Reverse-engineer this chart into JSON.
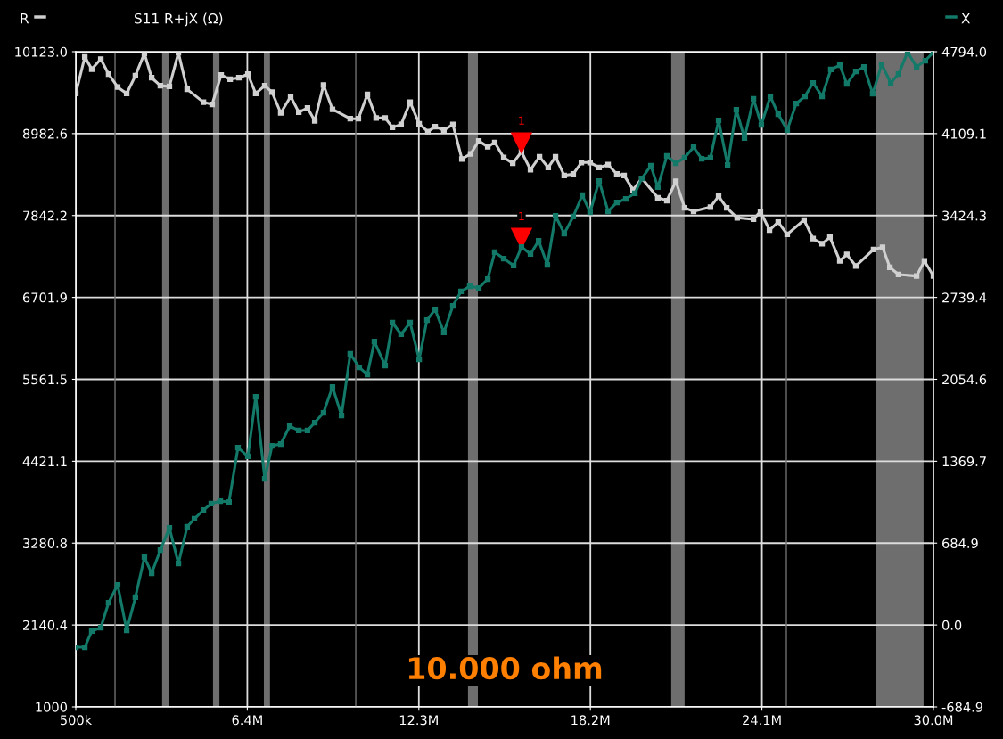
{
  "chart_data": {
    "type": "line",
    "title": "S11 R+jX (Ω)",
    "xlim": [
      500000,
      30000000
    ],
    "xticks": [
      {
        "value": 500000,
        "label": "500k"
      },
      {
        "value": 6400000,
        "label": "6.4M"
      },
      {
        "value": 12300000,
        "label": "12.3M"
      },
      {
        "value": 18200000,
        "label": "18.2M"
      },
      {
        "value": 24100000,
        "label": "24.1M"
      },
      {
        "value": 30000000,
        "label": "30.0M"
      }
    ],
    "ylim": [
      1000,
      10123.0
    ],
    "yticks": [
      1000,
      2140.4,
      3280.8,
      4421.1,
      5561.5,
      6701.9,
      7842.2,
      8982.6,
      {
        "value": 10123,
        "label": "10123.0"
      }
    ],
    "y2lim": [
      -684.9,
      4794.0
    ],
    "y2ticks": [
      -684.9,
      {
        "value": 0,
        "label": "0.0"
      },
      684.9,
      1369.7,
      2054.6,
      2739.4,
      3424.3,
      4109.1,
      {
        "value": 4794,
        "label": "4794.0"
      }
    ],
    "grid": true,
    "legend": "top",
    "marker": "square",
    "line_style": "solid",
    "series": [
      {
        "name": "R",
        "color": "#d0d0d0",
        "x": [
          500000,
          810000,
          1050000,
          1360000,
          1630000,
          1940000,
          2250000,
          2550000,
          2860000,
          3110000,
          3410000,
          3720000,
          4030000,
          4330000,
          4890000,
          5190000,
          5500000,
          5810000,
          6110000,
          6420000,
          6690000,
          7000000,
          7250000,
          7550000,
          7890000,
          8170000,
          8470000,
          8720000,
          9020000,
          9330000,
          9940000,
          10220000,
          10530000,
          10830000,
          11140000,
          11390000,
          11690000,
          12000000,
          12310000,
          12610000,
          12860000,
          13160000,
          13470000,
          13780000,
          14080000,
          14360000,
          14670000,
          14910000,
          15220000,
          15530000,
          15830000,
          16140000,
          16450000,
          16750000,
          17000000,
          17300000,
          17610000,
          17890000,
          18190000,
          18500000,
          18810000,
          19110000,
          19360000,
          19670000,
          19970000,
          20520000,
          20830000,
          21140000,
          21440000,
          21750000,
          22330000,
          22610000,
          22890000,
          23250000,
          23810000,
          24050000,
          24360000,
          24660000,
          24970000,
          25550000,
          25860000,
          26170000,
          26440000,
          26780000,
          27020000,
          27330000,
          27940000,
          28250000,
          28500000,
          28800000,
          29420000,
          29690000,
          30000000
        ],
        "values": [
          9540,
          10050,
          9880,
          10020,
          9810,
          9630,
          9540,
          9790,
          10100,
          9760,
          9650,
          9640,
          10110,
          9600,
          9420,
          9390,
          9800,
          9740,
          9760,
          9810,
          9540,
          9650,
          9560,
          9270,
          9500,
          9280,
          9340,
          9160,
          9660,
          9320,
          9190,
          9190,
          9530,
          9200,
          9200,
          9070,
          9110,
          9420,
          9120,
          9010,
          9080,
          9030,
          9110,
          8630,
          8700,
          8880,
          8800,
          8860,
          8650,
          8570,
          8730,
          8480,
          8660,
          8510,
          8660,
          8400,
          8420,
          8580,
          8580,
          8510,
          8550,
          8420,
          8400,
          8200,
          8360,
          8090,
          8050,
          8320,
          7950,
          7900,
          7960,
          8110,
          7950,
          7810,
          7790,
          7900,
          7640,
          7750,
          7580,
          7780,
          7520,
          7450,
          7540,
          7210,
          7300,
          7140,
          7370,
          7400,
          7120,
          7020,
          7000,
          7210,
          7000
        ]
      },
      {
        "name": "X",
        "color": "#137a69",
        "axis": "y2",
        "x": [
          500000,
          810000,
          1050000,
          1360000,
          1630000,
          1940000,
          2250000,
          2550000,
          2860000,
          3110000,
          3410000,
          3720000,
          4030000,
          4330000,
          4580000,
          4890000,
          5160000,
          5470000,
          5770000,
          6080000,
          6420000,
          6690000,
          7000000,
          7250000,
          7550000,
          7860000,
          8170000,
          8470000,
          8720000,
          9020000,
          9330000,
          9640000,
          9940000,
          10250000,
          10530000,
          10770000,
          11140000,
          11390000,
          11690000,
          12000000,
          12310000,
          12580000,
          12860000,
          13160000,
          13470000,
          13750000,
          14050000,
          14360000,
          14670000,
          14910000,
          15220000,
          15560000,
          15830000,
          16140000,
          16420000,
          16720000,
          17000000,
          17300000,
          17610000,
          17920000,
          18190000,
          18500000,
          18810000,
          19110000,
          19420000,
          19730000,
          19970000,
          20280000,
          20520000,
          20830000,
          21140000,
          21440000,
          21750000,
          22030000,
          22330000,
          22610000,
          22920000,
          23220000,
          23500000,
          23810000,
          24080000,
          24390000,
          24660000,
          24970000,
          25280000,
          25580000,
          25860000,
          26170000,
          26470000,
          26780000,
          27020000,
          27330000,
          27610000,
          27910000,
          28220000,
          28530000,
          28800000,
          29110000,
          29420000,
          29720000,
          30000000
        ],
        "values": [
          -186,
          -186,
          -51,
          -22,
          187,
          336,
          -44,
          232,
          567,
          433,
          627,
          813,
          515,
          821,
          888,
          962,
          1015,
          1037,
          1029,
          1484,
          1410,
          1909,
          1223,
          1499,
          1514,
          1663,
          1626,
          1626,
          1693,
          1775,
          1991,
          1752,
          2267,
          2155,
          2095,
          2371,
          2170,
          2528,
          2431,
          2528,
          2222,
          2550,
          2639,
          2446,
          2669,
          2789,
          2833,
          2818,
          2893,
          3117,
          3064,
          3005,
          3161,
          3102,
          3213,
          3012,
          3422,
          3273,
          3415,
          3594,
          3452,
          3713,
          3459,
          3534,
          3564,
          3609,
          3735,
          3840,
          3661,
          3922,
          3862,
          3907,
          3996,
          3899,
          3907,
          4220,
          3847,
          4309,
          4071,
          4399,
          4182,
          4421,
          4272,
          4138,
          4361,
          4421,
          4533,
          4421,
          4645,
          4682,
          4525,
          4630,
          4667,
          4443,
          4689,
          4533,
          4607,
          4790,
          4667,
          4719,
          4790
        ]
      }
    ],
    "bands": [
      {
        "axis": "x",
        "from": 3470000,
        "to": 3720000,
        "color": "#6e6e6e"
      },
      {
        "axis": "x",
        "from": 5220000,
        "to": 5440000,
        "color": "#6e6e6e"
      },
      {
        "axis": "x",
        "from": 6970000,
        "to": 7180000,
        "color": "#6e6e6e"
      },
      {
        "axis": "x",
        "from": 13990000,
        "to": 14330000,
        "color": "#6e6e6e"
      },
      {
        "axis": "x",
        "from": 20980000,
        "to": 21440000,
        "color": "#6e6e6e"
      },
      {
        "axis": "x",
        "from": 28010000,
        "to": 29660000,
        "color": "#6e6e6e"
      }
    ],
    "ref_lines": [
      {
        "axis": "x",
        "value": 1850000,
        "color": "#707070"
      },
      {
        "axis": "x",
        "value": 10130000,
        "color": "#707070"
      },
      {
        "axis": "x",
        "value": 24940000,
        "color": "#707070"
      }
    ],
    "annotations": [
      {
        "text": "1",
        "x": 15830000,
        "y": 8730
      },
      {
        "text": "1",
        "x": 15830000,
        "y": 7400
      },
      "10.000 ohm"
    ]
  }
}
